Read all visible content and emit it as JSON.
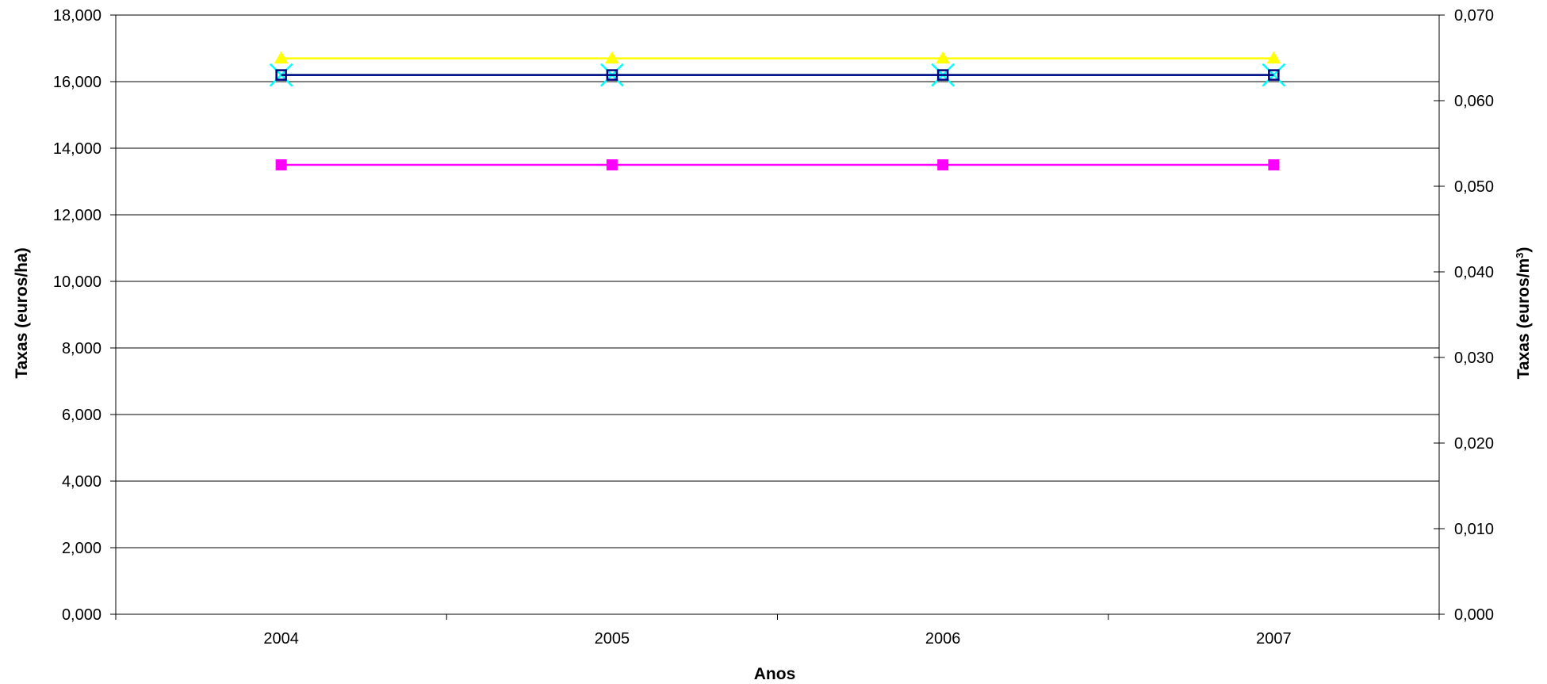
{
  "chart_data": {
    "type": "line",
    "title": "",
    "xlabel": "Anos",
    "ylabel_left": "Taxas (euros/ha)",
    "ylabel_right_main": "Taxas (euros/m",
    "ylabel_right_sup": "3",
    "ylabel_right_end": ")",
    "categories": [
      "2004",
      "2005",
      "2006",
      "2007"
    ],
    "y_left": {
      "lim": [
        0,
        18
      ],
      "ticks": [
        0,
        2,
        4,
        6,
        8,
        10,
        12,
        14,
        16,
        18
      ],
      "tick_labels": [
        "0,000",
        "2,000",
        "4,000",
        "6,000",
        "8,000",
        "10,000",
        "12,000",
        "14,000",
        "16,000",
        "18,000"
      ]
    },
    "y_right": {
      "lim": [
        0,
        0.07
      ],
      "ticks": [
        0,
        0.01,
        0.02,
        0.03,
        0.04,
        0.05,
        0.06,
        0.07
      ],
      "tick_labels": [
        "0,000",
        "0,010",
        "0,020",
        "0,030",
        "0,040",
        "0,050",
        "0,060",
        "0,070"
      ]
    },
    "grid": true,
    "legend": "none",
    "series": [
      {
        "axis": "left",
        "values": [
          16.7,
          16.7,
          16.7,
          16.7
        ],
        "color": "#ffff00",
        "marker": "triangle"
      },
      {
        "axis": "left",
        "values": [
          16.2,
          16.2,
          16.2,
          16.2
        ],
        "color": "#00ffff",
        "marker": "x"
      },
      {
        "axis": "left",
        "values": [
          16.2,
          16.2,
          16.2,
          16.2
        ],
        "color": "#000080",
        "marker": "hollow-square"
      },
      {
        "axis": "left",
        "values": [
          13.5,
          13.5,
          13.5,
          13.5
        ],
        "color": "#ff00ff",
        "marker": "square"
      }
    ]
  }
}
